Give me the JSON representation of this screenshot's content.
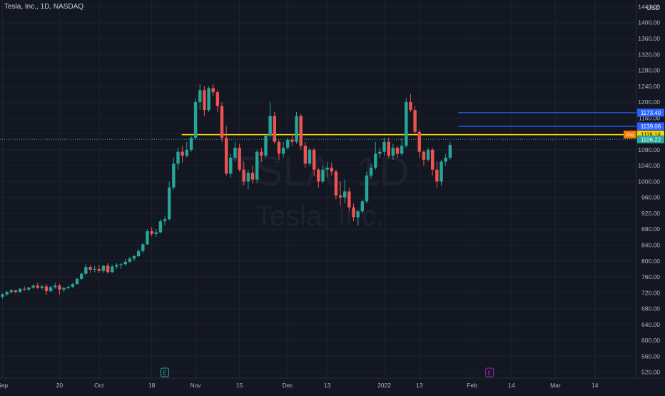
{
  "header": {
    "title": "Tesla, Inc., 1D, NASDAQ",
    "currency": "USD"
  },
  "watermark": {
    "symbol": "TSLA, 1D",
    "name": "Tesla, Inc."
  },
  "colors": {
    "background": "#131722",
    "up": "#26a69a",
    "down": "#ef5350",
    "grid": "#1e222d",
    "axis_text": "#b2b5be",
    "resistance": "#f5d400",
    "target": "#2962ff",
    "pre_market": "#f57c00",
    "last_price": "#26a69a"
  },
  "chart_data": {
    "type": "candlestick",
    "title": "Tesla, Inc., 1D, NASDAQ",
    "ylim": [
      500,
      1450
    ],
    "y_ticks": [
      520,
      560,
      600,
      640,
      680,
      720,
      760,
      800,
      840,
      880,
      920,
      960,
      1000,
      1040,
      1080,
      1120,
      1160,
      1200,
      1240,
      1280,
      1320,
      1360,
      1400,
      1440
    ],
    "x_ticks": [
      {
        "label": "Sep",
        "index": 0
      },
      {
        "label": "20",
        "index": 13
      },
      {
        "label": "Oct",
        "index": 22
      },
      {
        "label": "18",
        "index": 34
      },
      {
        "label": "Nov",
        "index": 44
      },
      {
        "label": "15",
        "index": 54
      },
      {
        "label": "Dec",
        "index": 65
      },
      {
        "label": "13",
        "index": 74
      },
      {
        "label": "2022",
        "index": 87
      },
      {
        "label": "13",
        "index": 95
      },
      {
        "label": "Feb",
        "index": 107
      },
      {
        "label": "14",
        "index": 116
      },
      {
        "label": "Mar",
        "index": 126
      },
      {
        "label": "14",
        "index": 135
      }
    ],
    "index_range": [
      0,
      139
    ],
    "candles": [
      [
        0,
        710,
        718,
        705,
        716
      ],
      [
        1,
        716,
        725,
        712,
        722
      ],
      [
        2,
        722,
        730,
        718,
        726
      ],
      [
        3,
        726,
        728,
        718,
        722
      ],
      [
        4,
        722,
        732,
        720,
        730
      ],
      [
        5,
        730,
        736,
        725,
        728
      ],
      [
        6,
        728,
        735,
        724,
        733
      ],
      [
        7,
        733,
        742,
        730,
        738
      ],
      [
        8,
        738,
        745,
        730,
        732
      ],
      [
        9,
        732,
        740,
        728,
        736
      ],
      [
        10,
        736,
        742,
        715,
        724
      ],
      [
        11,
        724,
        738,
        722,
        734
      ],
      [
        12,
        734,
        745,
        730,
        738
      ],
      [
        13,
        738,
        742,
        715,
        728
      ],
      [
        14,
        728,
        735,
        722,
        732
      ],
      [
        15,
        732,
        740,
        728,
        735
      ],
      [
        16,
        735,
        745,
        732,
        742
      ],
      [
        17,
        742,
        758,
        740,
        755
      ],
      [
        18,
        755,
        770,
        752,
        768
      ],
      [
        19,
        768,
        792,
        765,
        785
      ],
      [
        20,
        785,
        790,
        770,
        778
      ],
      [
        21,
        778,
        788,
        772,
        780
      ],
      [
        22,
        780,
        790,
        770,
        775
      ],
      [
        23,
        775,
        790,
        770,
        788
      ],
      [
        24,
        788,
        795,
        768,
        772
      ],
      [
        25,
        772,
        790,
        770,
        786
      ],
      [
        26,
        786,
        795,
        780,
        790
      ],
      [
        27,
        790,
        795,
        780,
        792
      ],
      [
        28,
        792,
        805,
        788,
        798
      ],
      [
        29,
        798,
        810,
        795,
        806
      ],
      [
        30,
        806,
        815,
        800,
        812
      ],
      [
        31,
        812,
        830,
        810,
        825
      ],
      [
        32,
        825,
        845,
        820,
        842
      ],
      [
        33,
        842,
        880,
        840,
        875
      ],
      [
        34,
        875,
        885,
        862,
        868
      ],
      [
        35,
        868,
        880,
        860,
        872
      ],
      [
        36,
        872,
        905,
        870,
        900
      ],
      [
        37,
        900,
        912,
        890,
        905
      ],
      [
        38,
        905,
        1000,
        902,
        985
      ],
      [
        39,
        985,
        1060,
        980,
        1045
      ],
      [
        40,
        1045,
        1085,
        1030,
        1075
      ],
      [
        41,
        1075,
        1090,
        1048,
        1065
      ],
      [
        42,
        1065,
        1100,
        1060,
        1080
      ],
      [
        43,
        1080,
        1115,
        1075,
        1110
      ],
      [
        44,
        1110,
        1210,
        1105,
        1200
      ],
      [
        45,
        1200,
        1245,
        1180,
        1230
      ],
      [
        46,
        1230,
        1240,
        1165,
        1180
      ],
      [
        47,
        1180,
        1240,
        1175,
        1235
      ],
      [
        48,
        1235,
        1245,
        1215,
        1225
      ],
      [
        49,
        1225,
        1230,
        1175,
        1190
      ],
      [
        50,
        1190,
        1200,
        1100,
        1110
      ],
      [
        51,
        1110,
        1140,
        1015,
        1020
      ],
      [
        52,
        1020,
        1070,
        1010,
        1060
      ],
      [
        53,
        1060,
        1100,
        1050,
        1085
      ],
      [
        54,
        1085,
        1095,
        1025,
        1030
      ],
      [
        55,
        1030,
        1050,
        990,
        1000
      ],
      [
        56,
        1000,
        1030,
        980,
        1022
      ],
      [
        57,
        1022,
        1040,
        995,
        1005
      ],
      [
        58,
        1005,
        1080,
        995,
        1075
      ],
      [
        59,
        1075,
        1085,
        1050,
        1065
      ],
      [
        60,
        1065,
        1120,
        1060,
        1115
      ],
      [
        61,
        1115,
        1200,
        1110,
        1165
      ],
      [
        62,
        1165,
        1175,
        1095,
        1100
      ],
      [
        63,
        1100,
        1105,
        1055,
        1070
      ],
      [
        64,
        1070,
        1100,
        1060,
        1085
      ],
      [
        65,
        1085,
        1110,
        1080,
        1105
      ],
      [
        66,
        1105,
        1120,
        1090,
        1100
      ],
      [
        67,
        1100,
        1175,
        1095,
        1165
      ],
      [
        68,
        1165,
        1170,
        1080,
        1090
      ],
      [
        69,
        1090,
        1100,
        1035,
        1045
      ],
      [
        70,
        1045,
        1085,
        1040,
        1080
      ],
      [
        71,
        1080,
        1085,
        1015,
        1030
      ],
      [
        72,
        1030,
        1035,
        985,
        1000
      ],
      [
        73,
        1000,
        1040,
        995,
        1030
      ],
      [
        74,
        1030,
        1050,
        1010,
        1035
      ],
      [
        75,
        1035,
        1048,
        1015,
        1025
      ],
      [
        76,
        1025,
        1030,
        955,
        965
      ],
      [
        77,
        965,
        1000,
        940,
        960
      ],
      [
        78,
        960,
        1005,
        945,
        975
      ],
      [
        79,
        975,
        985,
        925,
        935
      ],
      [
        80,
        935,
        945,
        900,
        910
      ],
      [
        81,
        910,
        930,
        890,
        925
      ],
      [
        82,
        925,
        955,
        920,
        950
      ],
      [
        83,
        950,
        1025,
        945,
        1015
      ],
      [
        84,
        1015,
        1045,
        1008,
        1035
      ],
      [
        85,
        1035,
        1100,
        1030,
        1070
      ],
      [
        86,
        1070,
        1085,
        1060,
        1075
      ],
      [
        87,
        1075,
        1110,
        1065,
        1100
      ],
      [
        88,
        1100,
        1110,
        1060,
        1065
      ],
      [
        89,
        1065,
        1095,
        1055,
        1085
      ],
      [
        90,
        1085,
        1090,
        1060,
        1070
      ],
      [
        91,
        1070,
        1110,
        1065,
        1090
      ],
      [
        92,
        1090,
        1210,
        1085,
        1200
      ],
      [
        93,
        1200,
        1220,
        1175,
        1180
      ],
      [
        94,
        1180,
        1190,
        1120,
        1125
      ],
      [
        95,
        1125,
        1130,
        1060,
        1075
      ],
      [
        96,
        1075,
        1078,
        1040,
        1055
      ],
      [
        97,
        1055,
        1085,
        1050,
        1080
      ],
      [
        98,
        1080,
        1085,
        1015,
        1030
      ],
      [
        99,
        1030,
        1050,
        985,
        1000
      ],
      [
        100,
        1000,
        1055,
        990,
        1050
      ],
      [
        101,
        1050,
        1070,
        1040,
        1060
      ],
      [
        102,
        1060,
        1100,
        1055,
        1092
      ]
    ],
    "resistance_line": {
      "value": 1118.0,
      "from_index": 41
    },
    "target_lines": [
      {
        "value": 1173.4,
        "from_index": 104
      },
      {
        "value": 1139.06,
        "from_index": 104
      }
    ],
    "last_price_line": 1106.22,
    "price_labels": [
      {
        "text": "1173.40",
        "value": 1173.4,
        "kind": "target"
      },
      {
        "text": "1139.06",
        "value": 1139.06,
        "kind": "target"
      },
      {
        "text": "1118.00",
        "value": 1118.0,
        "kind": "resistance"
      },
      {
        "text": "1118.14",
        "value": 1118.14,
        "kind": "pre",
        "tag": "Pre"
      },
      {
        "text": "1106.22",
        "value": 1106.22,
        "kind": "last"
      }
    ],
    "event_markers": [
      {
        "symbol": "E",
        "index": 37,
        "kind": "earnings"
      },
      {
        "symbol": "E",
        "index": 111,
        "kind": "earnings-upcoming"
      }
    ]
  }
}
